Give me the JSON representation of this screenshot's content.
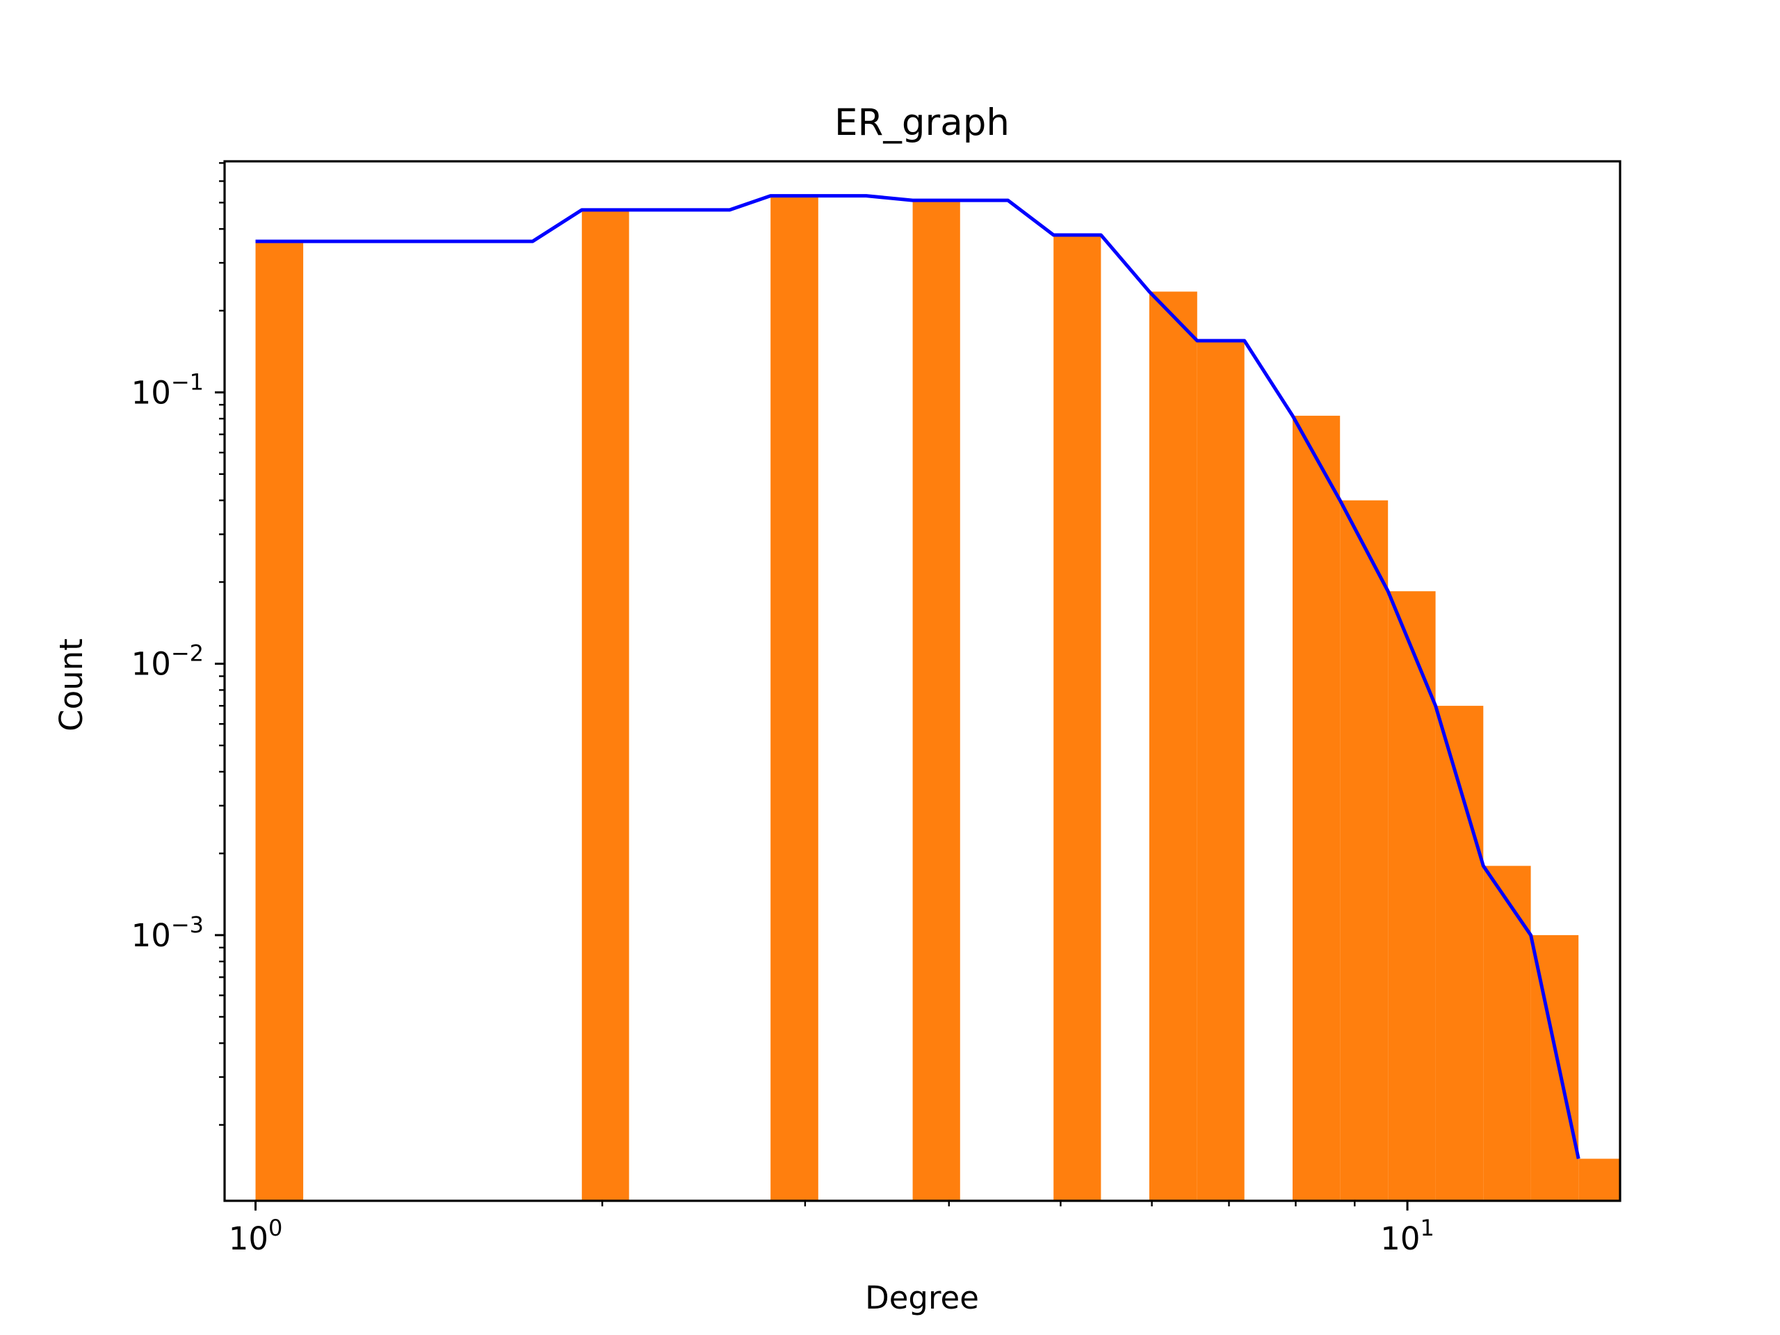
{
  "chart_data": {
    "type": "bar",
    "title": "ER_graph",
    "xlabel": "Degree",
    "ylabel": "Count",
    "xscale": "log",
    "yscale": "log",
    "xlim": [
      0.94,
      15.3
    ],
    "ylim": [
      0.000105,
      0.71
    ],
    "x_ticks": [
      {
        "value": 1,
        "base": "10",
        "exp": "0"
      },
      {
        "value": 10,
        "base": "10",
        "exp": "1"
      }
    ],
    "y_ticks": [
      {
        "value": 0.1,
        "base": "10",
        "exp": "−1"
      },
      {
        "value": 0.01,
        "base": "10",
        "exp": "−2"
      },
      {
        "value": 0.001,
        "base": "10",
        "exp": "−3"
      }
    ],
    "grid": false,
    "bar_color": "#ff7f0e",
    "line_color": "#0000ff",
    "bars": [
      {
        "x0": 1.0,
        "x1": 1.1,
        "value": 0.36
      },
      {
        "x0": 1.92,
        "x1": 2.11,
        "value": 0.47
      },
      {
        "x0": 2.8,
        "x1": 3.08,
        "value": 0.53
      },
      {
        "x0": 3.72,
        "x1": 4.09,
        "value": 0.51
      },
      {
        "x0": 4.93,
        "x1": 5.42,
        "value": 0.38
      },
      {
        "x0": 5.97,
        "x1": 6.57,
        "value": 0.235
      },
      {
        "x0": 6.57,
        "x1": 7.22,
        "value": 0.155
      },
      {
        "x0": 7.95,
        "x1": 8.74,
        "value": 0.082
      },
      {
        "x0": 8.74,
        "x1": 9.62,
        "value": 0.04
      },
      {
        "x0": 9.62,
        "x1": 10.58,
        "value": 0.0185
      },
      {
        "x0": 10.58,
        "x1": 11.64,
        "value": 0.007
      },
      {
        "x0": 11.64,
        "x1": 12.8,
        "value": 0.0018
      },
      {
        "x0": 12.8,
        "x1": 14.08,
        "value": 0.001
      },
      {
        "x0": 14.08,
        "x1": 15.49,
        "value": 0.00015
      }
    ],
    "line": {
      "x": [
        1.0,
        1.1,
        1.74,
        1.92,
        2.11,
        2.58,
        2.8,
        3.08,
        3.39,
        3.72,
        4.09,
        4.5,
        4.93,
        5.42,
        5.97,
        6.57,
        7.22,
        7.95,
        8.74,
        9.62,
        10.58,
        11.64,
        12.8,
        14.08
      ],
      "y": [
        0.36,
        0.36,
        0.36,
        0.47,
        0.47,
        0.47,
        0.53,
        0.53,
        0.53,
        0.51,
        0.51,
        0.51,
        0.38,
        0.38,
        0.235,
        0.155,
        0.155,
        0.082,
        0.04,
        0.0185,
        0.007,
        0.0018,
        0.001,
        0.00015
      ]
    }
  }
}
